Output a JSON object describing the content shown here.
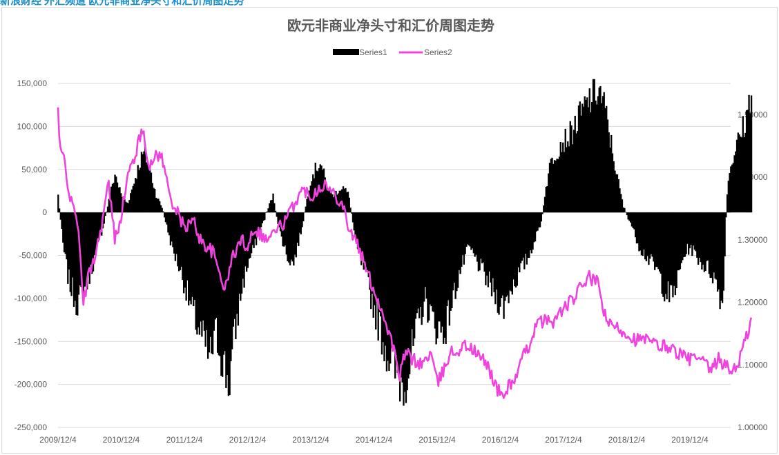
{
  "banner": {
    "text": "新浪财经 外汇频道 欧元非商业净头寸和汇价周图走势"
  },
  "chart_data": {
    "type": "bar+line",
    "title": "欧元非商业净头寸和汇价周图走势",
    "legend_position": "top",
    "grid": "horizontal",
    "colors": {
      "Series1": "#000000",
      "Series2": "#ee44dd"
    },
    "x_tick_labels": [
      "2009/12/4",
      "2010/12/4",
      "2011/12/4",
      "2012/12/4",
      "2013/12/4",
      "2014/12/4",
      "2015/12/4",
      "2016/12/4",
      "2017/12/4",
      "2018/12/4",
      "2019/12/4"
    ],
    "y_left": {
      "min": -250000,
      "max": 150000,
      "step": 50000,
      "tick_labels": [
        "150,000",
        "100,000",
        "50,000",
        "0",
        "-50,000",
        "-100,000",
        "-150,000",
        "-200,000",
        "-250,000"
      ]
    },
    "y_right": {
      "min": 1.0,
      "max": 1.55,
      "step": 0.1,
      "tick_labels": [
        "1.50000",
        "1.40000",
        "1.30000",
        "1.20000",
        "1.10000",
        "1.00000"
      ]
    },
    "series": [
      {
        "name": "Series1",
        "type": "bar",
        "axis": "left",
        "keypoints": [
          [
            0,
            20000
          ],
          [
            0.08,
            -40000
          ],
          [
            0.17,
            -80000
          ],
          [
            0.3,
            -105000
          ],
          [
            0.42,
            -90000
          ],
          [
            0.55,
            -60000
          ],
          [
            0.7,
            -20000
          ],
          [
            0.82,
            20000
          ],
          [
            0.9,
            45000
          ],
          [
            1.0,
            20000
          ],
          [
            1.1,
            10000
          ],
          [
            1.2,
            35000
          ],
          [
            1.3,
            60000
          ],
          [
            1.37,
            70000
          ],
          [
            1.45,
            50000
          ],
          [
            1.55,
            20000
          ],
          [
            1.65,
            5000
          ],
          [
            1.8,
            -40000
          ],
          [
            1.95,
            -70000
          ],
          [
            2.1,
            -110000
          ],
          [
            2.25,
            -140000
          ],
          [
            2.4,
            -170000
          ],
          [
            2.5,
            -140000
          ],
          [
            2.6,
            -170000
          ],
          [
            2.7,
            -200000
          ],
          [
            2.78,
            -150000
          ],
          [
            2.9,
            -90000
          ],
          [
            3.0,
            -60000
          ],
          [
            3.1,
            -40000
          ],
          [
            3.2,
            -20000
          ],
          [
            3.3,
            0
          ],
          [
            3.4,
            20000
          ],
          [
            3.5,
            -20000
          ],
          [
            3.62,
            -50000
          ],
          [
            3.72,
            -60000
          ],
          [
            3.85,
            -20000
          ],
          [
            4.0,
            40000
          ],
          [
            4.15,
            60000
          ],
          [
            4.25,
            30000
          ],
          [
            4.35,
            20000
          ],
          [
            4.5,
            30000
          ],
          [
            4.6,
            20000
          ],
          [
            4.72,
            -40000
          ],
          [
            4.85,
            -70000
          ],
          [
            5.0,
            -110000
          ],
          [
            5.15,
            -150000
          ],
          [
            5.3,
            -180000
          ],
          [
            5.45,
            -200000
          ],
          [
            5.55,
            -180000
          ],
          [
            5.7,
            -130000
          ],
          [
            5.8,
            -100000
          ],
          [
            5.95,
            -130000
          ],
          [
            6.1,
            -140000
          ],
          [
            6.25,
            -100000
          ],
          [
            6.35,
            -70000
          ],
          [
            6.5,
            -40000
          ],
          [
            6.65,
            -60000
          ],
          [
            6.8,
            -80000
          ],
          [
            6.95,
            -100000
          ],
          [
            7.05,
            -110000
          ],
          [
            7.15,
            -90000
          ],
          [
            7.3,
            -70000
          ],
          [
            7.45,
            -50000
          ],
          [
            7.55,
            -30000
          ],
          [
            7.65,
            -10000
          ],
          [
            7.7,
            20000
          ],
          [
            7.8,
            60000
          ],
          [
            7.95,
            80000
          ],
          [
            8.1,
            90000
          ],
          [
            8.25,
            110000
          ],
          [
            8.4,
            130000
          ],
          [
            8.55,
            145000
          ],
          [
            8.65,
            120000
          ],
          [
            8.75,
            80000
          ],
          [
            8.85,
            40000
          ],
          [
            8.95,
            5000
          ],
          [
            9.05,
            -10000
          ],
          [
            9.2,
            -40000
          ],
          [
            9.35,
            -55000
          ],
          [
            9.5,
            -70000
          ],
          [
            9.6,
            -90000
          ],
          [
            9.7,
            -100000
          ],
          [
            9.8,
            -80000
          ],
          [
            9.9,
            -50000
          ],
          [
            10.0,
            -40000
          ],
          [
            10.1,
            -50000
          ],
          [
            10.2,
            -60000
          ],
          [
            10.35,
            -70000
          ],
          [
            10.45,
            -90000
          ],
          [
            10.52,
            -110000
          ],
          [
            10.56,
            -20000
          ],
          [
            10.6,
            40000
          ],
          [
            10.7,
            70000
          ],
          [
            10.8,
            90000
          ],
          [
            10.9,
            110000
          ],
          [
            10.97,
            150000
          ]
        ]
      },
      {
        "name": "Series2",
        "type": "line",
        "axis": "right",
        "keypoints": [
          [
            0,
            1.51
          ],
          [
            0.03,
            1.44
          ],
          [
            0.1,
            1.43
          ],
          [
            0.2,
            1.36
          ],
          [
            0.3,
            1.34
          ],
          [
            0.4,
            1.2
          ],
          [
            0.5,
            1.25
          ],
          [
            0.6,
            1.28
          ],
          [
            0.7,
            1.33
          ],
          [
            0.8,
            1.39
          ],
          [
            0.9,
            1.3
          ],
          [
            1.0,
            1.34
          ],
          [
            1.1,
            1.4
          ],
          [
            1.2,
            1.43
          ],
          [
            1.35,
            1.48
          ],
          [
            1.45,
            1.41
          ],
          [
            1.55,
            1.44
          ],
          [
            1.65,
            1.43
          ],
          [
            1.75,
            1.38
          ],
          [
            1.85,
            1.35
          ],
          [
            2.0,
            1.32
          ],
          [
            2.15,
            1.33
          ],
          [
            2.25,
            1.3
          ],
          [
            2.35,
            1.29
          ],
          [
            2.45,
            1.28
          ],
          [
            2.55,
            1.25
          ],
          [
            2.65,
            1.22
          ],
          [
            2.75,
            1.27
          ],
          [
            2.9,
            1.3
          ],
          [
            3.0,
            1.29
          ],
          [
            3.1,
            1.32
          ],
          [
            3.2,
            1.31
          ],
          [
            3.3,
            1.3
          ],
          [
            3.4,
            1.31
          ],
          [
            3.5,
            1.32
          ],
          [
            3.6,
            1.33
          ],
          [
            3.7,
            1.35
          ],
          [
            3.8,
            1.37
          ],
          [
            3.9,
            1.38
          ],
          [
            4.0,
            1.37
          ],
          [
            4.1,
            1.38
          ],
          [
            4.2,
            1.39
          ],
          [
            4.3,
            1.38
          ],
          [
            4.4,
            1.37
          ],
          [
            4.5,
            1.36
          ],
          [
            4.6,
            1.32
          ],
          [
            4.75,
            1.29
          ],
          [
            4.85,
            1.26
          ],
          [
            5.0,
            1.22
          ],
          [
            5.15,
            1.18
          ],
          [
            5.3,
            1.13
          ],
          [
            5.4,
            1.08
          ],
          [
            5.5,
            1.12
          ],
          [
            5.6,
            1.11
          ],
          [
            5.75,
            1.1
          ],
          [
            5.9,
            1.12
          ],
          [
            6.0,
            1.07
          ],
          [
            6.1,
            1.09
          ],
          [
            6.2,
            1.12
          ],
          [
            6.3,
            1.12
          ],
          [
            6.4,
            1.13
          ],
          [
            6.5,
            1.13
          ],
          [
            6.6,
            1.12
          ],
          [
            6.7,
            1.11
          ],
          [
            6.8,
            1.1
          ],
          [
            6.95,
            1.06
          ],
          [
            7.05,
            1.05
          ],
          [
            7.15,
            1.07
          ],
          [
            7.25,
            1.08
          ],
          [
            7.35,
            1.11
          ],
          [
            7.45,
            1.13
          ],
          [
            7.55,
            1.16
          ],
          [
            7.65,
            1.17
          ],
          [
            7.75,
            1.17
          ],
          [
            7.85,
            1.17
          ],
          [
            8.0,
            1.19
          ],
          [
            8.1,
            1.2
          ],
          [
            8.2,
            1.21
          ],
          [
            8.3,
            1.23
          ],
          [
            8.4,
            1.24
          ],
          [
            8.55,
            1.23
          ],
          [
            8.65,
            1.18
          ],
          [
            8.75,
            1.16
          ],
          [
            8.85,
            1.16
          ],
          [
            9.0,
            1.15
          ],
          [
            9.15,
            1.14
          ],
          [
            9.3,
            1.14
          ],
          [
            9.5,
            1.13
          ],
          [
            9.65,
            1.13
          ],
          [
            9.8,
            1.12
          ],
          [
            9.95,
            1.11
          ],
          [
            10.1,
            1.11
          ],
          [
            10.25,
            1.1
          ],
          [
            10.35,
            1.09
          ],
          [
            10.45,
            1.11
          ],
          [
            10.55,
            1.1
          ],
          [
            10.65,
            1.09
          ],
          [
            10.75,
            1.1
          ],
          [
            10.85,
            1.13
          ],
          [
            10.97,
            1.17
          ]
        ]
      }
    ]
  }
}
